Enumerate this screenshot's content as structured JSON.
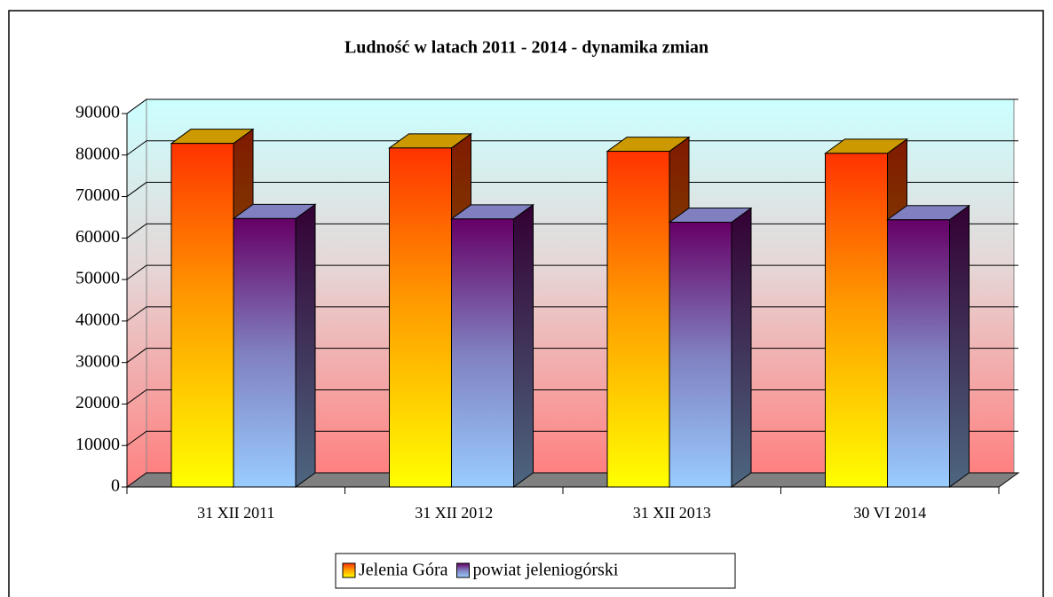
{
  "chart_data": {
    "type": "bar3d",
    "title": "Ludność w latach 2011 - 2014 - dynamika zmian",
    "categories": [
      "31 XII 2011",
      "31 XII 2012",
      "31 XII 2013",
      "30 VI 2014"
    ],
    "series": [
      {
        "name": "Jelenia Góra",
        "color": "#ff3300",
        "values": [
          82800,
          81700,
          80900,
          80400
        ]
      },
      {
        "name": "powiat jeleniogórski",
        "color": "#660066",
        "values": [
          64700,
          64600,
          63800,
          64400
        ]
      }
    ],
    "ylim": [
      0,
      90000
    ],
    "yticks": [
      0,
      10000,
      20000,
      30000,
      40000,
      50000,
      60000,
      70000,
      80000,
      90000
    ],
    "grid": true,
    "legend": "bottom"
  }
}
